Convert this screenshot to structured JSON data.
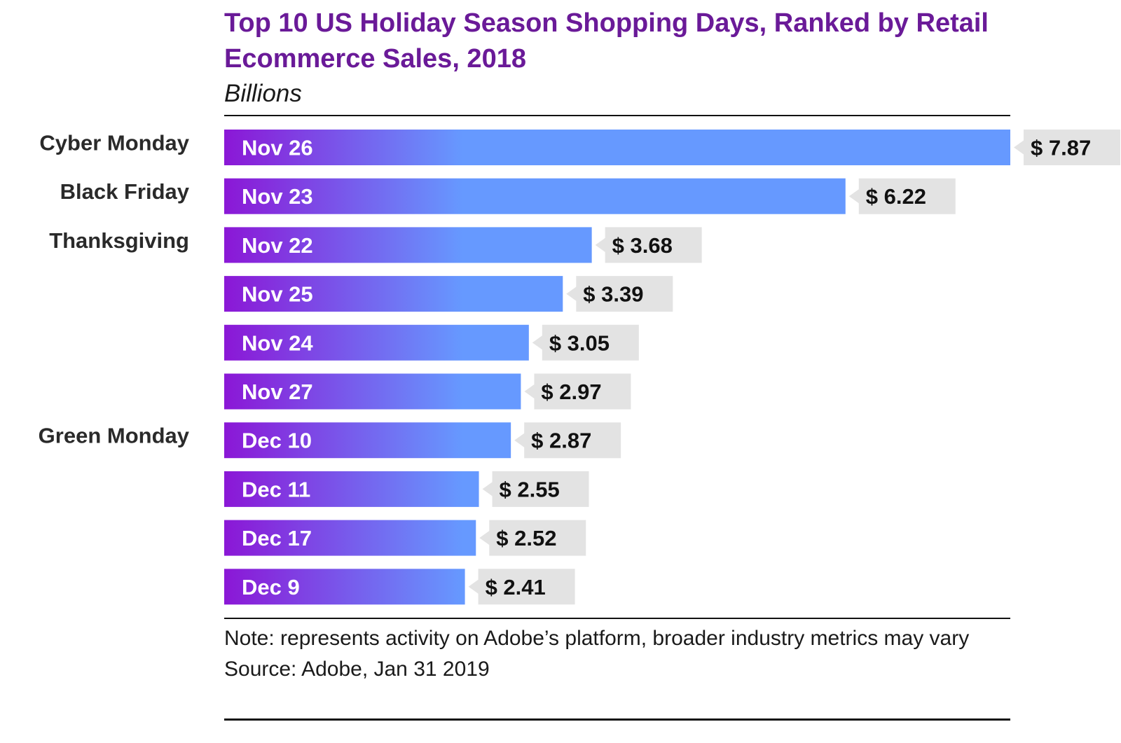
{
  "header": {
    "title": "Top 10 US Holiday Season Shopping Days, Ranked by Retail Ecommerce Sales, 2018",
    "subtitle": "Billions"
  },
  "footer": {
    "note": "Note: represents activity on Adobe’s platform, broader industry metrics may vary",
    "source": "Source: Adobe, Jan 31 2019"
  },
  "colors": {
    "title": "#6a1a98",
    "bar_start": "#8b17d6",
    "bar_end": "#6699ff",
    "value_box": "#e3e3e3"
  },
  "chart_data": {
    "type": "bar",
    "orientation": "horizontal",
    "title": "Top 10 US Holiday Season Shopping Days, Ranked by Retail Ecommerce Sales, 2018",
    "unit": "Billions",
    "value_prefix": "$ ",
    "categories": [
      "Nov 26",
      "Nov 23",
      "Nov 22",
      "Nov 25",
      "Nov 24",
      "Nov 27",
      "Dec 10",
      "Dec 11",
      "Dec 17",
      "Dec 9"
    ],
    "row_labels": [
      "Cyber Monday",
      "Black Friday",
      "Thanksgiving",
      "",
      "",
      "",
      "Green Monday",
      "",
      "",
      ""
    ],
    "values": [
      7.87,
      6.22,
      3.68,
      3.39,
      3.05,
      2.97,
      2.87,
      2.55,
      2.52,
      2.41
    ],
    "value_labels": [
      "$ 7.87",
      "$ 6.22",
      "$ 3.68",
      "$ 3.39",
      "$ 3.05",
      "$ 2.97",
      "$ 2.87",
      "$ 2.55",
      "$ 2.52",
      "$ 2.41"
    ],
    "xlim": [
      0,
      7.87
    ],
    "grid": false,
    "legend": "none"
  }
}
